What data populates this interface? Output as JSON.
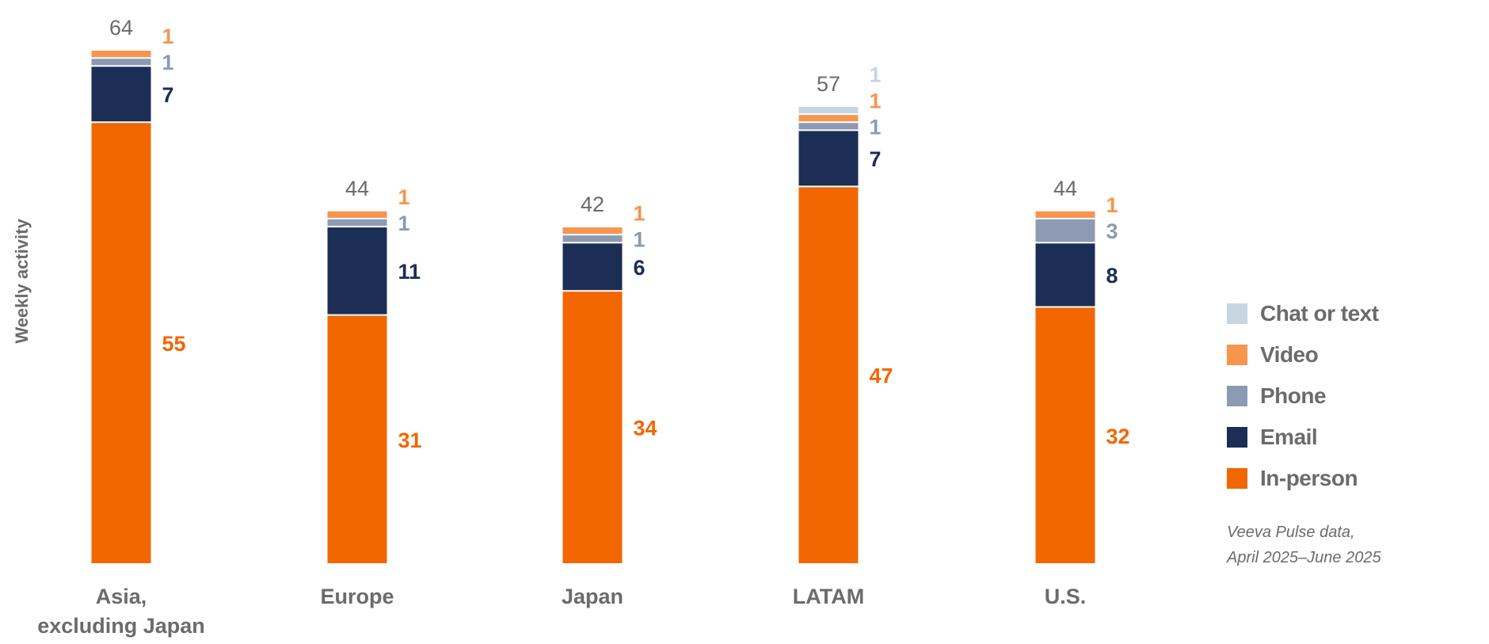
{
  "chart_data": {
    "type": "bar",
    "stacked": true,
    "title": "",
    "xlabel": "",
    "ylabel": "Weekly activity",
    "categories": [
      "Asia,\nexcluding Japan",
      "Europe",
      "Japan",
      "LATAM",
      "U.S."
    ],
    "category_lines": [
      [
        "Asia,",
        "excluding Japan"
      ],
      [
        "Europe"
      ],
      [
        "Japan"
      ],
      [
        "LATAM"
      ],
      [
        "U.S."
      ]
    ],
    "totals": [
      64,
      44,
      42,
      57,
      44
    ],
    "series": [
      {
        "name": "In-person",
        "color": "#f26600",
        "label_color": "#f26600",
        "values": [
          55,
          31,
          34,
          47,
          32
        ]
      },
      {
        "name": "Email",
        "color": "#1c2e55",
        "label_color": "#1c2e55",
        "values": [
          7,
          11,
          6,
          7,
          8
        ]
      },
      {
        "name": "Phone",
        "color": "#8c9ab3",
        "label_color": "#8c9ab3",
        "values": [
          1,
          1,
          1,
          1,
          3
        ]
      },
      {
        "name": "Video",
        "color": "#f7954d",
        "label_color": "#f7954d",
        "values": [
          1,
          1,
          1,
          1,
          1
        ]
      },
      {
        "name": "Chat or text",
        "color": "#c5d5e2",
        "label_color": "#c5d5e2",
        "values": [
          0,
          0,
          0,
          1,
          0
        ]
      }
    ],
    "legend_order": [
      "Chat or text",
      "Video",
      "Phone",
      "Email",
      "In-person"
    ],
    "legend_position": "right",
    "grid": false,
    "ylim": [
      0,
      64
    ]
  },
  "legend": [
    "Chat or text",
    "Video",
    "Phone",
    "Email",
    "In-person"
  ],
  "legend_colors": [
    "#c5d5e2",
    "#f7954d",
    "#8c9ab3",
    "#1c2e55",
    "#f26600"
  ],
  "note": {
    "line1": "Veeva Pulse data,",
    "line2": "April 2025–June 2025"
  }
}
